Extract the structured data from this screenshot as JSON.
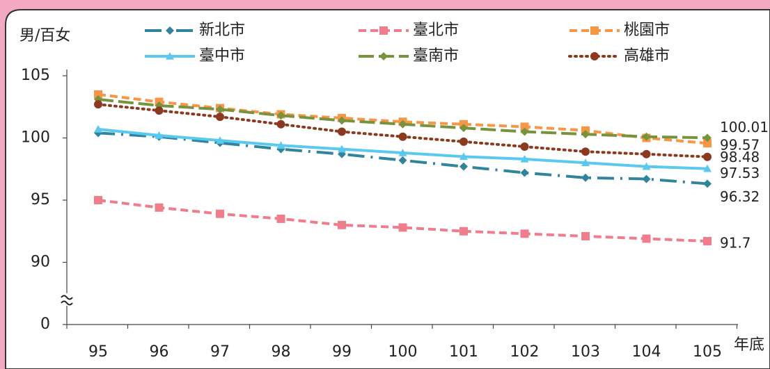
{
  "chart_data": {
    "type": "line",
    "y_label": "男/百女",
    "x_label": "年底",
    "categories": [
      "95",
      "96",
      "97",
      "98",
      "99",
      "100",
      "101",
      "102",
      "103",
      "104",
      "105"
    ],
    "ylim": [
      0,
      105
    ],
    "ybreak": [
      0,
      85
    ],
    "yticks": [
      0,
      90,
      95,
      100,
      105
    ],
    "series": [
      {
        "name": "新北市",
        "color": "#31849b",
        "label_color": "#1f3864",
        "dash": "dash-dot",
        "marker": "diamond",
        "values": [
          100.4,
          100.1,
          99.6,
          99.1,
          98.7,
          98.2,
          97.7,
          97.2,
          96.8,
          96.7,
          96.32
        ]
      },
      {
        "name": "臺北市",
        "color": "#ef7d8c",
        "label_color": "#ef7d8c",
        "dash": "dash",
        "marker": "square",
        "values": [
          95.0,
          94.4,
          93.9,
          93.5,
          93.0,
          92.8,
          92.5,
          92.3,
          92.1,
          91.9,
          91.7
        ]
      },
      {
        "name": "桃園市",
        "color": "#f79646",
        "label_color": "#f79646",
        "dash": "dash",
        "marker": "square",
        "values": [
          103.5,
          102.9,
          102.4,
          101.9,
          101.6,
          101.3,
          101.1,
          100.9,
          100.6,
          100.0,
          99.57
        ]
      },
      {
        "name": "臺中市",
        "color": "#5bc8f0",
        "label_color": "#31849b",
        "dash": "solid",
        "marker": "triangle",
        "values": [
          100.7,
          100.2,
          99.8,
          99.4,
          99.1,
          98.8,
          98.5,
          98.3,
          98.0,
          97.7,
          97.53
        ]
      },
      {
        "name": "臺南市",
        "color": "#77933c",
        "label_color": "#77933c",
        "dash": "long-dash",
        "marker": "diamond",
        "values": [
          103.1,
          102.6,
          102.3,
          101.8,
          101.4,
          101.1,
          100.8,
          100.5,
          100.3,
          100.1,
          100.01
        ]
      },
      {
        "name": "高雄市",
        "color": "#8b3a1f",
        "label_color": "#8b3a1f",
        "dash": "dot",
        "marker": "circle",
        "values": [
          102.7,
          102.2,
          101.7,
          101.1,
          100.5,
          100.1,
          99.7,
          99.3,
          98.9,
          98.7,
          98.48
        ]
      }
    ]
  }
}
